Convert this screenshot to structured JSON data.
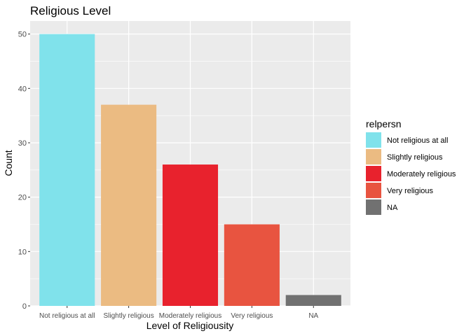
{
  "chart_data": {
    "type": "bar",
    "title": "Religious Level",
    "xlabel": "Level of Religiousity",
    "ylabel": "Count",
    "categories": [
      "Not religious at all",
      "Slightly religious",
      "Moderately religious",
      "Very religious",
      "NA"
    ],
    "values": [
      50,
      37,
      26,
      15,
      2
    ],
    "colors": [
      "#80E2EB",
      "#EBBB82",
      "#E8222D",
      "#E85440",
      "#717171"
    ],
    "ylim": [
      0,
      52.4
    ],
    "yticks": [
      0,
      10,
      20,
      30,
      40,
      50
    ],
    "grid": true,
    "panel_background": "#EBEBEB",
    "legend": {
      "title": "relpersn",
      "placement": "right",
      "entries": [
        "Not religious at all",
        "Slightly religious",
        "Moderately religious",
        "Very religious",
        "NA"
      ]
    }
  }
}
